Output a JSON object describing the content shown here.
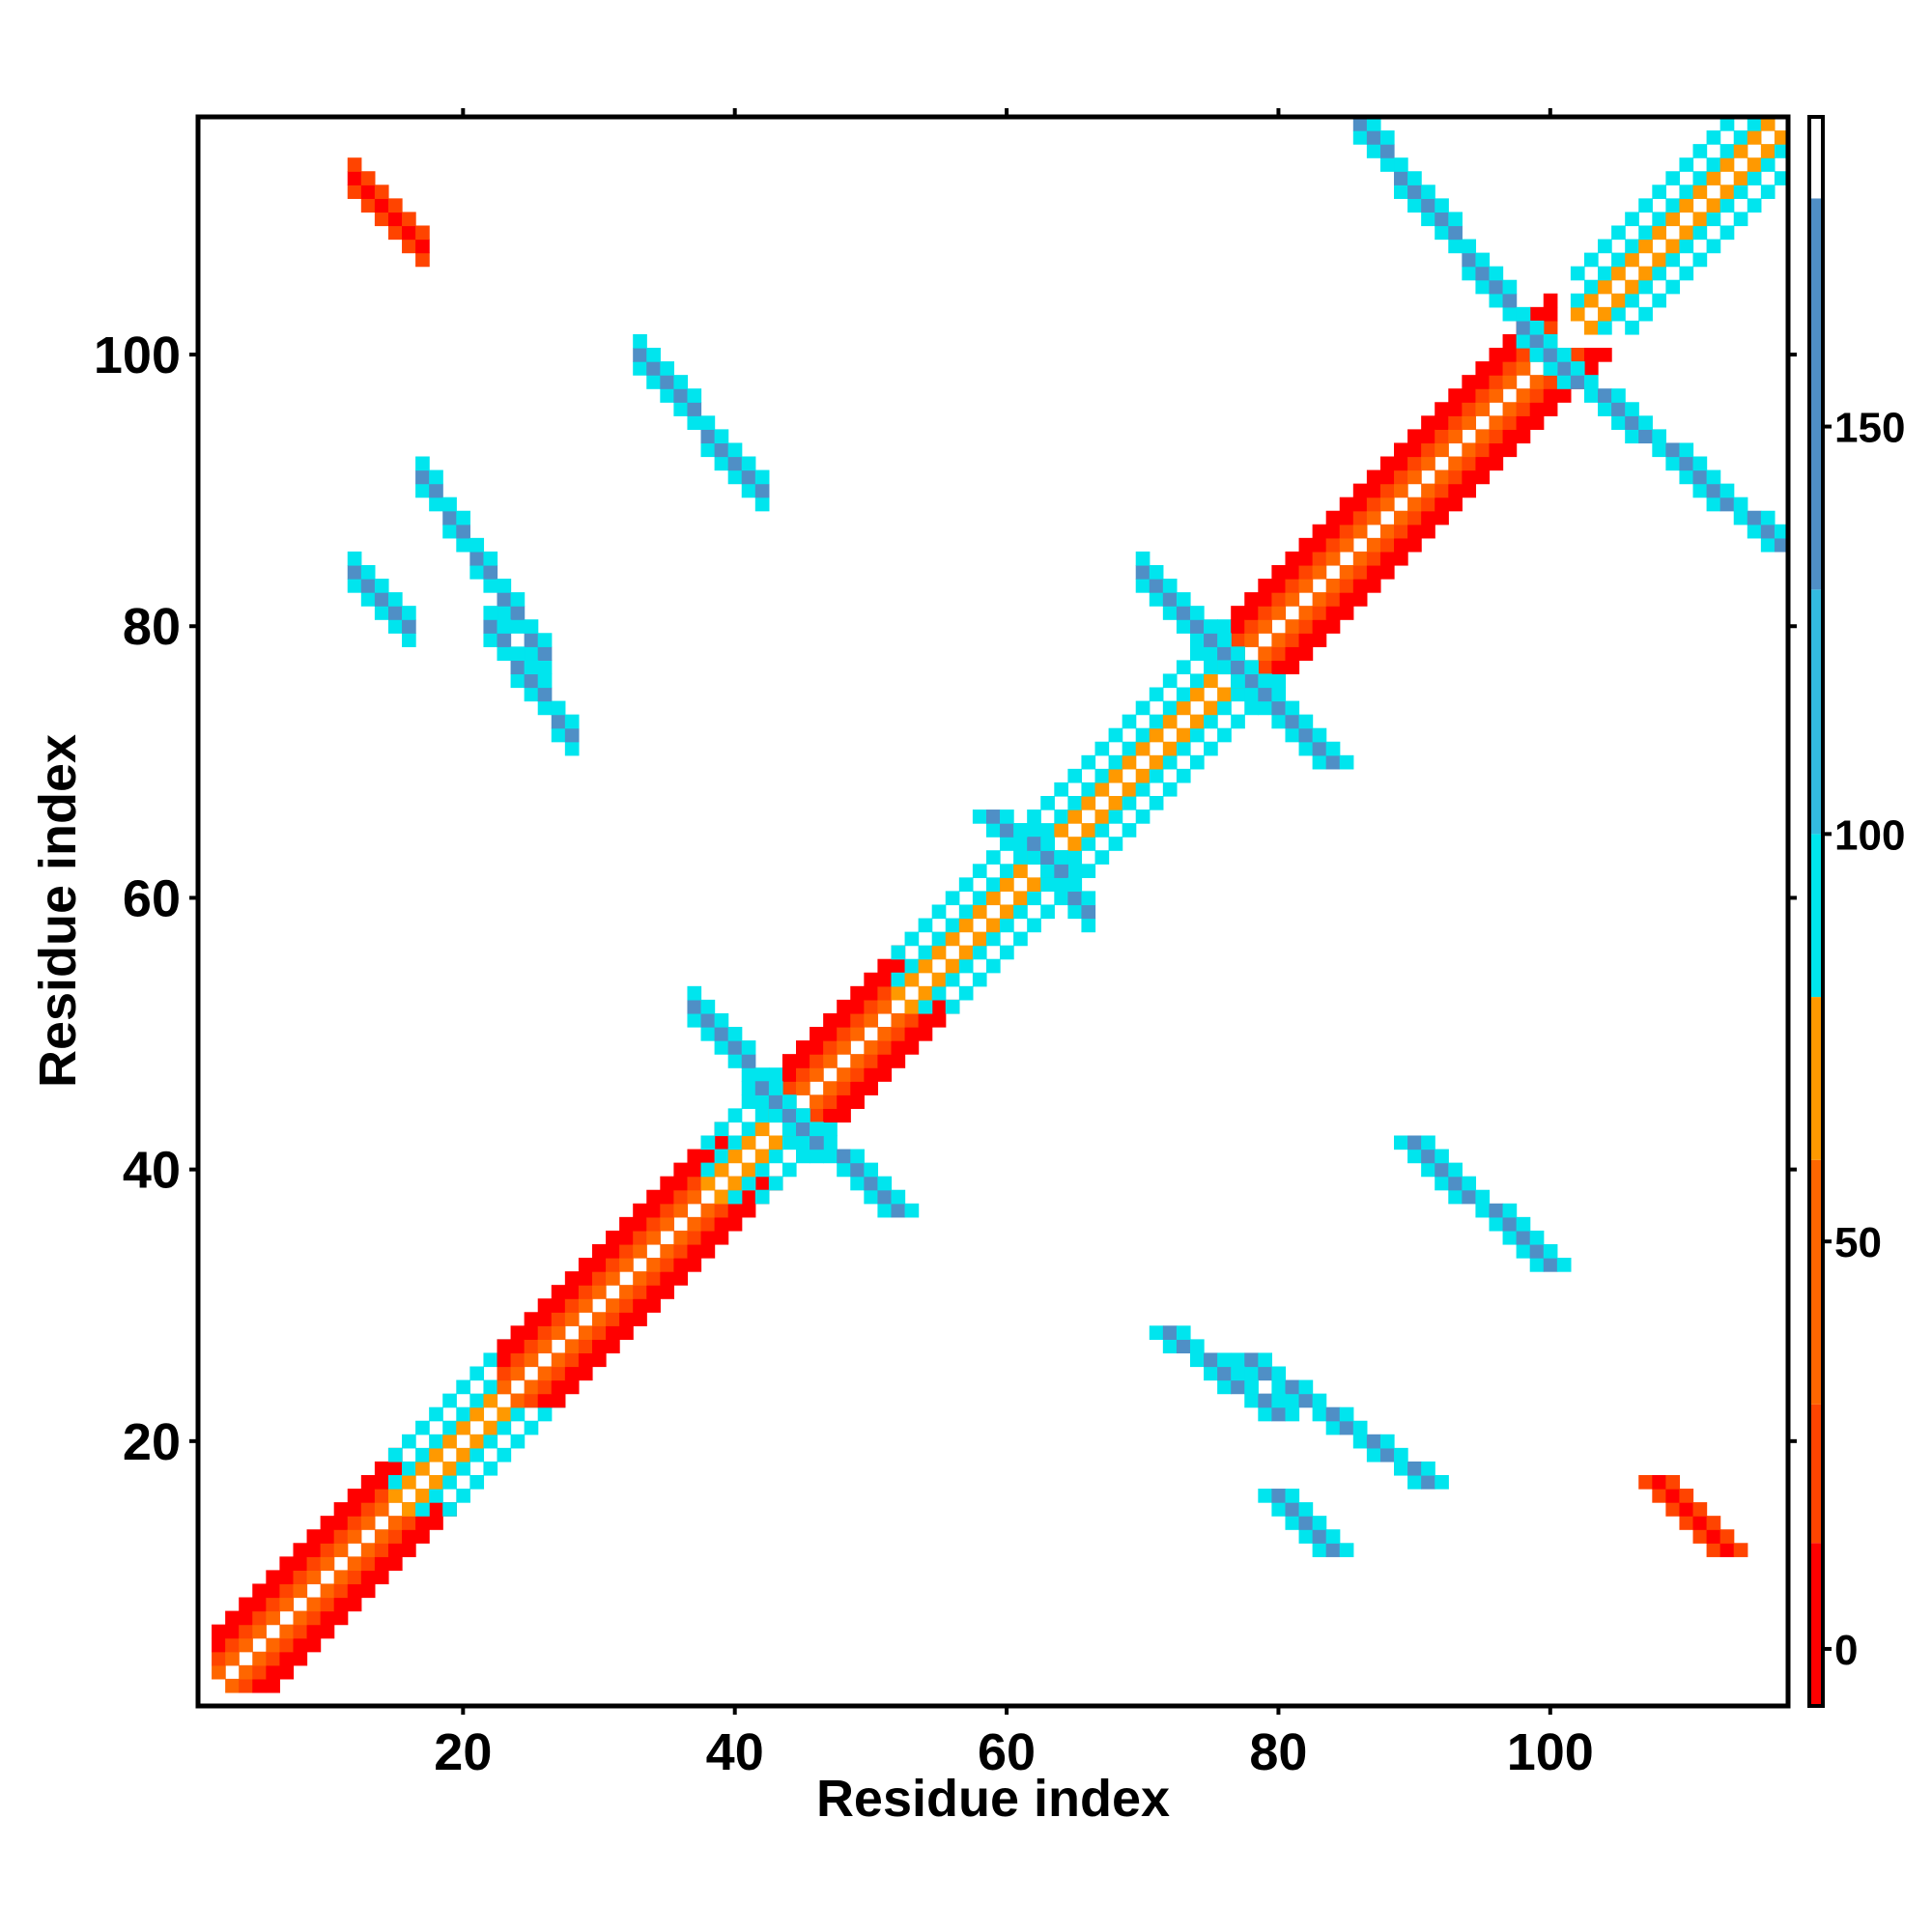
{
  "chart_data": {
    "type": "heatmap",
    "title": "",
    "xlabel": "Residue index",
    "ylabel": "Residue index",
    "xlim": [
      1,
      117
    ],
    "ylim": [
      1,
      117
    ],
    "x_ticks": [
      20,
      40,
      60,
      80,
      100
    ],
    "y_ticks": [
      20,
      40,
      60,
      80,
      100
    ],
    "colorbar": {
      "ticks": [
        0,
        50,
        100,
        150
      ],
      "range": [
        -7,
        188
      ],
      "segments": [
        {
          "from": -7,
          "to": 13,
          "color": "#ff0000"
        },
        {
          "from": 13,
          "to": 30,
          "color": "#ff4400"
        },
        {
          "from": 30,
          "to": 60,
          "color": "#ff6600"
        },
        {
          "from": 60,
          "to": 80,
          "color": "#ff9900"
        },
        {
          "from": 80,
          "to": 100,
          "color": "#00e5ee"
        },
        {
          "from": 100,
          "to": 130,
          "color": "#33bbe0"
        },
        {
          "from": 130,
          "to": 178,
          "color": "#4f8fc6"
        },
        {
          "from": 178,
          "to": 188,
          "color": "#ffffff"
        }
      ]
    },
    "features": {
      "diagonal_helices": [
        [
          2,
          15
        ],
        [
          15,
          23
        ],
        [
          23,
          39
        ],
        [
          38,
          43
        ],
        [
          44,
          52
        ],
        [
          52,
          76
        ],
        [
          77,
          100
        ],
        [
          102,
          117
        ]
      ],
      "antiparallel_sheets": [
        {
          "a": [
            12,
            17
          ],
          "b": [
            108,
            113
          ],
          "value": 5
        },
        {
          "a": [
            12,
            16
          ],
          "b": [
            80,
            84
          ],
          "value": 150
        },
        {
          "a": [
            17,
            26
          ],
          "b": [
            78,
            91
          ],
          "value": 145
        },
        {
          "a": [
            22,
            28
          ],
          "b": [
            72,
            80
          ],
          "value": 150
        },
        {
          "a": [
            33,
            42
          ],
          "b": [
            90,
            100
          ],
          "value": 148
        },
        {
          "a": [
            37,
            46
          ],
          "b": [
            42,
            52
          ],
          "value": 150
        },
        {
          "a": [
            70,
            77
          ],
          "b": [
            77,
            84
          ],
          "value": 150
        },
        {
          "a": [
            86,
            100
          ],
          "b": [
            100,
            117
          ],
          "value": 148
        },
        {
          "a": [
            62,
            66
          ],
          "b": [
            59,
            64
          ],
          "value": 150
        }
      ]
    }
  }
}
